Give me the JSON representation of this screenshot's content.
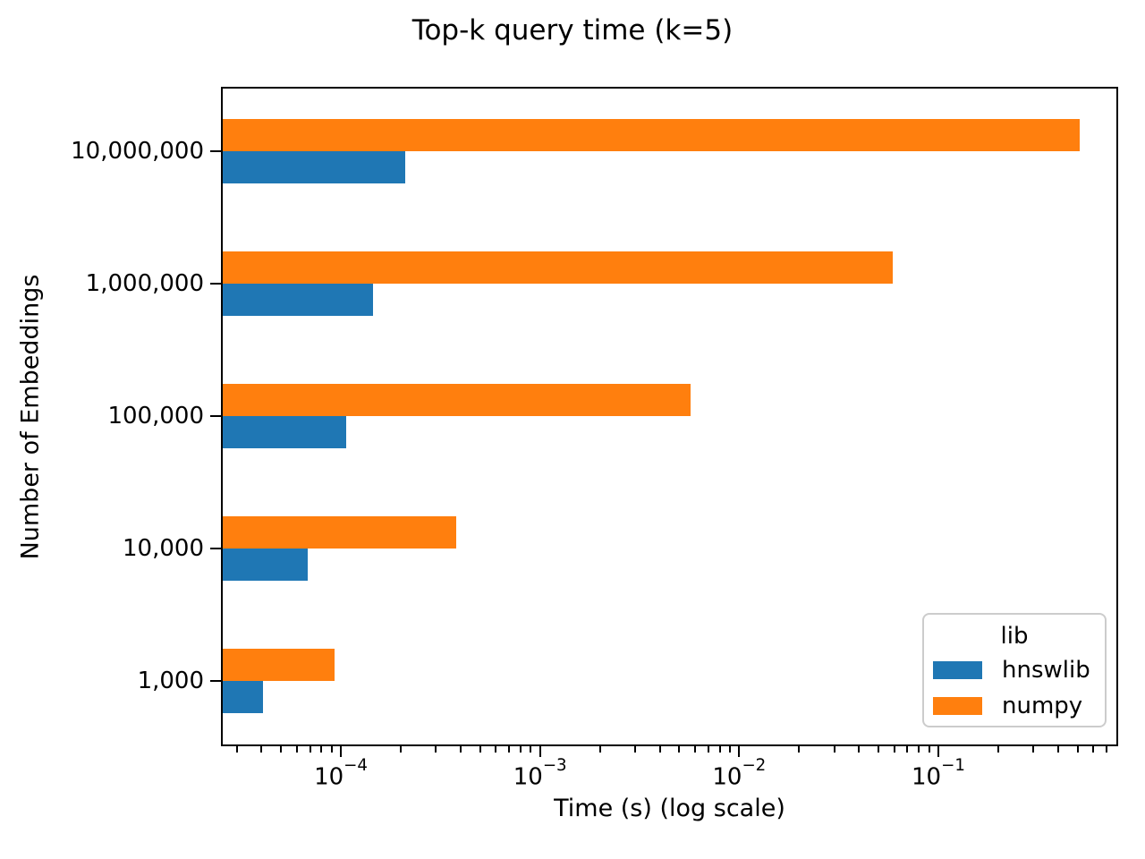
{
  "chart_data": {
    "type": "bar",
    "orientation": "horizontal",
    "title": "Top-k query time (k=5)",
    "xlabel": "Time (s) (log scale)",
    "ylabel": "Number of Embeddings",
    "x_scale": "log",
    "xlim": [
      2.5e-05,
      0.8
    ],
    "grid": false,
    "tick_label_base": "10",
    "categories": [
      "10,000,000",
      "1,000,000",
      "100,000",
      "10,000",
      "1,000"
    ],
    "series": [
      {
        "name": "hnswlib",
        "color": "#1f77b4",
        "group_slot": "bottom",
        "values": [
          0.000207,
          0.000142,
          0.000104,
          6.7e-05,
          4e-05
        ]
      },
      {
        "name": "numpy",
        "color": "#ff7f0e",
        "group_slot": "top",
        "values": [
          0.5,
          0.058,
          0.0056,
          0.00037,
          9.1e-05
        ]
      }
    ],
    "x_major_ticks": [
      {
        "value": 0.0001,
        "exponent": -4
      },
      {
        "value": 0.001,
        "exponent": -3
      },
      {
        "value": 0.01,
        "exponent": -2
      },
      {
        "value": 0.1,
        "exponent": -1
      }
    ],
    "legend": {
      "title": "lib",
      "position": "lower right",
      "entries": [
        "hnswlib",
        "numpy"
      ]
    },
    "colors": {
      "spine": "#000000",
      "legend_border": "#cccccc",
      "background": "#ffffff"
    }
  }
}
